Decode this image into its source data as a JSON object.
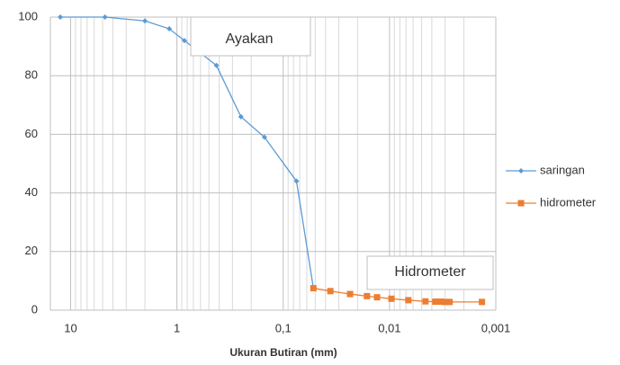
{
  "chart_data": {
    "type": "line",
    "x_label": "Ukuran Butiran (mm)",
    "annotations": [
      "Ayakan",
      "Hidrometer"
    ],
    "x_log": true,
    "grid": true,
    "legend": "right",
    "xlim": [
      15.5,
      0.001
    ],
    "xticks": [
      10,
      1,
      {
        "value": 0.1,
        "label": "0,1"
      },
      {
        "value": 0.01,
        "label": "0,01"
      },
      {
        "value": 0.001,
        "label": "0,001"
      }
    ],
    "ylim": [
      0,
      100
    ],
    "yticks": [
      0,
      20,
      40,
      60,
      80,
      100
    ],
    "series": [
      {
        "name": "saringan",
        "color": "#5b9bd5",
        "marker": "diamond",
        "x": [
          12.5,
          4.75,
          2.0,
          1.18,
          0.85,
          0.425,
          0.25,
          0.15,
          0.075,
          0.052
        ],
        "values": [
          100,
          100,
          98.7,
          96,
          92,
          83.5,
          66,
          59,
          44,
          7.5
        ]
      },
      {
        "name": "hidrometer",
        "color": "#ed7d31",
        "marker": "square",
        "x": [
          0.052,
          0.036,
          0.0235,
          0.0163,
          0.0131,
          0.0096,
          0.00665,
          0.00459,
          0.00371,
          0.00331,
          0.003,
          0.00272,
          0.00135
        ],
        "values": [
          7.5,
          6.5,
          5.5,
          4.8,
          4.4,
          3.9,
          3.4,
          3.0,
          2.9,
          2.9,
          2.8,
          2.8,
          2.8
        ]
      }
    ]
  }
}
